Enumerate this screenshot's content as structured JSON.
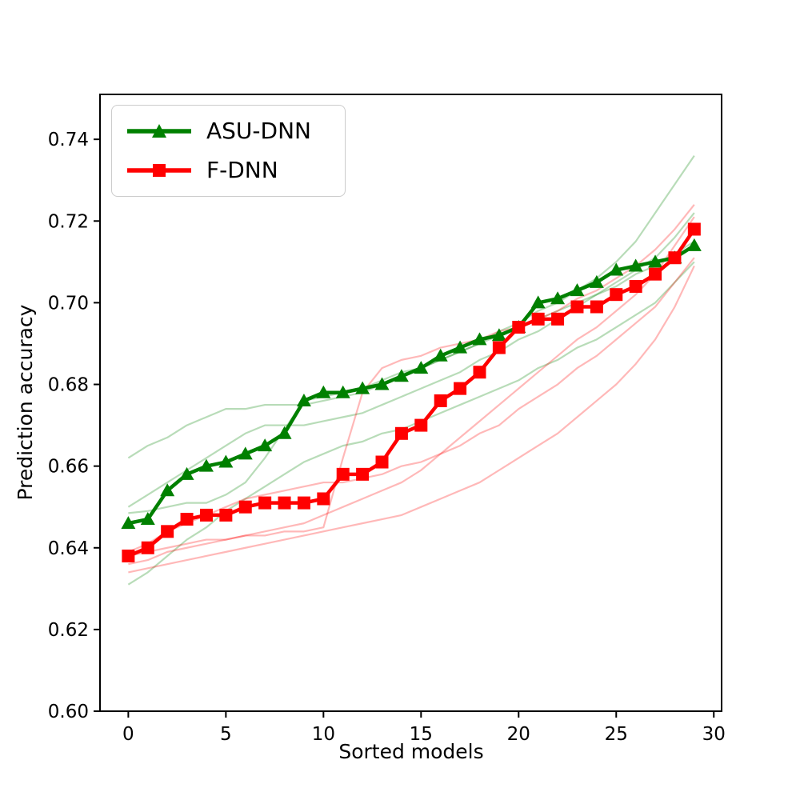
{
  "figure": {
    "background": "#ffffff"
  },
  "chart_data": {
    "type": "line",
    "title": "",
    "xlabel": "Sorted models",
    "ylabel": "Prediction accuracy",
    "xlim": [
      -1.45,
      30.4
    ],
    "ylim": [
      0.6,
      0.751
    ],
    "grid": false,
    "x_ticks": [
      {
        "v": 0,
        "label": "0"
      },
      {
        "v": 5,
        "label": "5"
      },
      {
        "v": 10,
        "label": "10"
      },
      {
        "v": 15,
        "label": "15"
      },
      {
        "v": 20,
        "label": "20"
      },
      {
        "v": 25,
        "label": "25"
      },
      {
        "v": 30,
        "label": "30"
      }
    ],
    "y_ticks": [
      {
        "v": 0.6,
        "label": "0.60"
      },
      {
        "v": 0.62,
        "label": "0.62"
      },
      {
        "v": 0.64,
        "label": "0.64"
      },
      {
        "v": 0.66,
        "label": "0.66"
      },
      {
        "v": 0.68,
        "label": "0.68"
      },
      {
        "v": 0.7,
        "label": "0.70"
      },
      {
        "v": 0.72,
        "label": "0.72"
      },
      {
        "v": 0.74,
        "label": "0.74"
      }
    ],
    "x": [
      0,
      1,
      2,
      3,
      4,
      5,
      6,
      7,
      8,
      9,
      10,
      11,
      12,
      13,
      14,
      15,
      16,
      17,
      18,
      19,
      20,
      21,
      22,
      23,
      24,
      25,
      26,
      27,
      28,
      29
    ],
    "series": [
      {
        "name": "ASU-DNN",
        "color": "#008000",
        "marker": "triangle",
        "line_width": 4.5,
        "values": [
          0.646,
          0.647,
          0.654,
          0.658,
          0.66,
          0.661,
          0.663,
          0.665,
          0.668,
          0.676,
          0.678,
          0.678,
          0.679,
          0.68,
          0.682,
          0.684,
          0.687,
          0.689,
          0.691,
          0.692,
          0.694,
          0.7,
          0.701,
          0.703,
          0.705,
          0.708,
          0.709,
          0.71,
          0.711,
          0.714
        ]
      },
      {
        "name": "F-DNN",
        "color": "#ff0000",
        "marker": "square",
        "line_width": 4.5,
        "values": [
          0.638,
          0.64,
          0.644,
          0.647,
          0.648,
          0.648,
          0.65,
          0.651,
          0.651,
          0.651,
          0.652,
          0.658,
          0.658,
          0.661,
          0.668,
          0.67,
          0.676,
          0.679,
          0.683,
          0.689,
          0.694,
          0.696,
          0.696,
          0.699,
          0.699,
          0.702,
          0.704,
          0.707,
          0.711,
          0.718
        ]
      }
    ],
    "background_series": [
      {
        "group": "ASU-DNN",
        "color": "#008000",
        "opacity": 0.28,
        "values": [
          0.662,
          0.665,
          0.667,
          0.67,
          0.672,
          0.674,
          0.674,
          0.675,
          0.675,
          0.675,
          0.676,
          0.677,
          0.678,
          0.68,
          0.682,
          0.684,
          0.686,
          0.688,
          0.69,
          0.693,
          0.695,
          0.698,
          0.7,
          0.703,
          0.706,
          0.71,
          0.715,
          0.722,
          0.729,
          0.736
        ]
      },
      {
        "group": "ASU-DNN",
        "color": "#008000",
        "opacity": 0.28,
        "values": [
          0.65,
          0.653,
          0.656,
          0.659,
          0.662,
          0.665,
          0.668,
          0.67,
          0.67,
          0.67,
          0.671,
          0.672,
          0.673,
          0.675,
          0.677,
          0.679,
          0.681,
          0.683,
          0.686,
          0.688,
          0.691,
          0.693,
          0.696,
          0.699,
          0.702,
          0.705,
          0.708,
          0.711,
          0.716,
          0.722
        ]
      },
      {
        "group": "ASU-DNN",
        "color": "#008000",
        "opacity": 0.28,
        "values": [
          0.6485,
          0.649,
          0.65,
          0.651,
          0.651,
          0.653,
          0.656,
          0.662,
          0.669,
          0.676,
          0.677,
          0.678,
          0.679,
          0.681,
          0.683,
          0.684,
          0.686,
          0.688,
          0.69,
          0.692,
          0.694,
          0.696,
          0.698,
          0.7,
          0.702,
          0.704,
          0.707,
          0.709,
          0.712,
          0.715
        ]
      },
      {
        "group": "ASU-DNN",
        "color": "#008000",
        "opacity": 0.28,
        "values": [
          0.631,
          0.634,
          0.638,
          0.642,
          0.645,
          0.649,
          0.652,
          0.655,
          0.658,
          0.661,
          0.663,
          0.665,
          0.666,
          0.668,
          0.669,
          0.671,
          0.673,
          0.675,
          0.677,
          0.679,
          0.681,
          0.684,
          0.686,
          0.689,
          0.691,
          0.694,
          0.697,
          0.7,
          0.705,
          0.71
        ]
      },
      {
        "group": "F-DNN",
        "color": "#ff0000",
        "opacity": 0.28,
        "values": [
          0.638,
          0.639,
          0.64,
          0.641,
          0.642,
          0.642,
          0.643,
          0.643,
          0.644,
          0.644,
          0.645,
          0.662,
          0.678,
          0.684,
          0.686,
          0.687,
          0.689,
          0.69,
          0.691,
          0.693,
          0.694,
          0.696,
          0.698,
          0.701,
          0.703,
          0.706,
          0.709,
          0.713,
          0.718,
          0.724
        ]
      },
      {
        "group": "F-DNN",
        "color": "#ff0000",
        "opacity": 0.28,
        "values": [
          0.636,
          0.637,
          0.639,
          0.64,
          0.641,
          0.642,
          0.643,
          0.644,
          0.645,
          0.646,
          0.648,
          0.65,
          0.652,
          0.654,
          0.656,
          0.659,
          0.663,
          0.667,
          0.671,
          0.675,
          0.679,
          0.683,
          0.687,
          0.691,
          0.694,
          0.698,
          0.702,
          0.707,
          0.714,
          0.721
        ]
      },
      {
        "group": "F-DNN",
        "color": "#ff0000",
        "opacity": 0.28,
        "values": [
          0.639,
          0.641,
          0.644,
          0.646,
          0.648,
          0.65,
          0.652,
          0.653,
          0.654,
          0.655,
          0.656,
          0.656,
          0.657,
          0.658,
          0.66,
          0.661,
          0.663,
          0.665,
          0.668,
          0.67,
          0.674,
          0.677,
          0.68,
          0.684,
          0.687,
          0.691,
          0.695,
          0.699,
          0.705,
          0.711
        ]
      },
      {
        "group": "F-DNN",
        "color": "#ff0000",
        "opacity": 0.28,
        "values": [
          0.634,
          0.635,
          0.636,
          0.637,
          0.638,
          0.639,
          0.64,
          0.641,
          0.642,
          0.643,
          0.644,
          0.645,
          0.646,
          0.647,
          0.648,
          0.65,
          0.652,
          0.654,
          0.656,
          0.659,
          0.662,
          0.665,
          0.668,
          0.672,
          0.676,
          0.68,
          0.685,
          0.691,
          0.699,
          0.709
        ]
      }
    ],
    "legend": {
      "position": "upper-left",
      "entries": [
        "ASU-DNN",
        "F-DNN"
      ]
    }
  }
}
